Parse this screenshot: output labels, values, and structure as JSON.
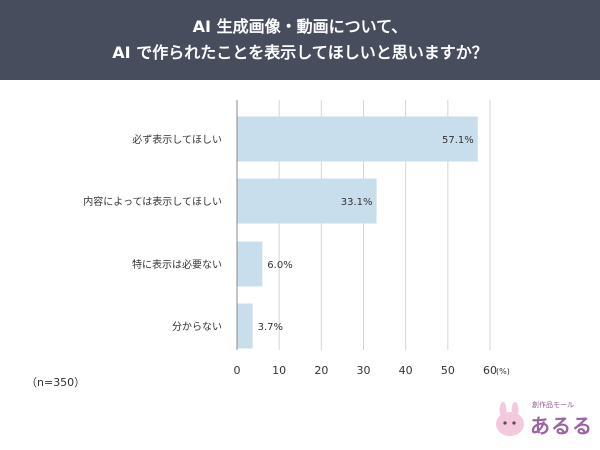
{
  "header": {
    "title_line1": "AI 生成画像・動画について、",
    "title_line2": "AI で作られたことを表示してほしいと思いますか？"
  },
  "note": "（n=350）",
  "logo": {
    "subtitle": "創作品モール",
    "name": "あるる"
  },
  "colors": {
    "bar": "#c9deed",
    "axis": "#888888",
    "grid": "#d5d5d5",
    "header_bg": "#474d5d"
  },
  "chart_data": {
    "type": "bar",
    "orientation": "horizontal",
    "categories": [
      "必ず表示してほしい",
      "内容によっては表示してほしい",
      "特に表示は必要ない",
      "分からない"
    ],
    "values": [
      57.1,
      33.1,
      6.0,
      3.7
    ],
    "value_labels": [
      "57.1%",
      "33.1%",
      "6.0%",
      "3.7%"
    ],
    "xlim": [
      0,
      60
    ],
    "ticks": [
      0,
      10,
      20,
      30,
      40,
      50,
      60
    ],
    "tick_labels": [
      "0",
      "10",
      "20",
      "30",
      "40",
      "50",
      "60"
    ],
    "unit_label": "(%)",
    "grid": true
  }
}
